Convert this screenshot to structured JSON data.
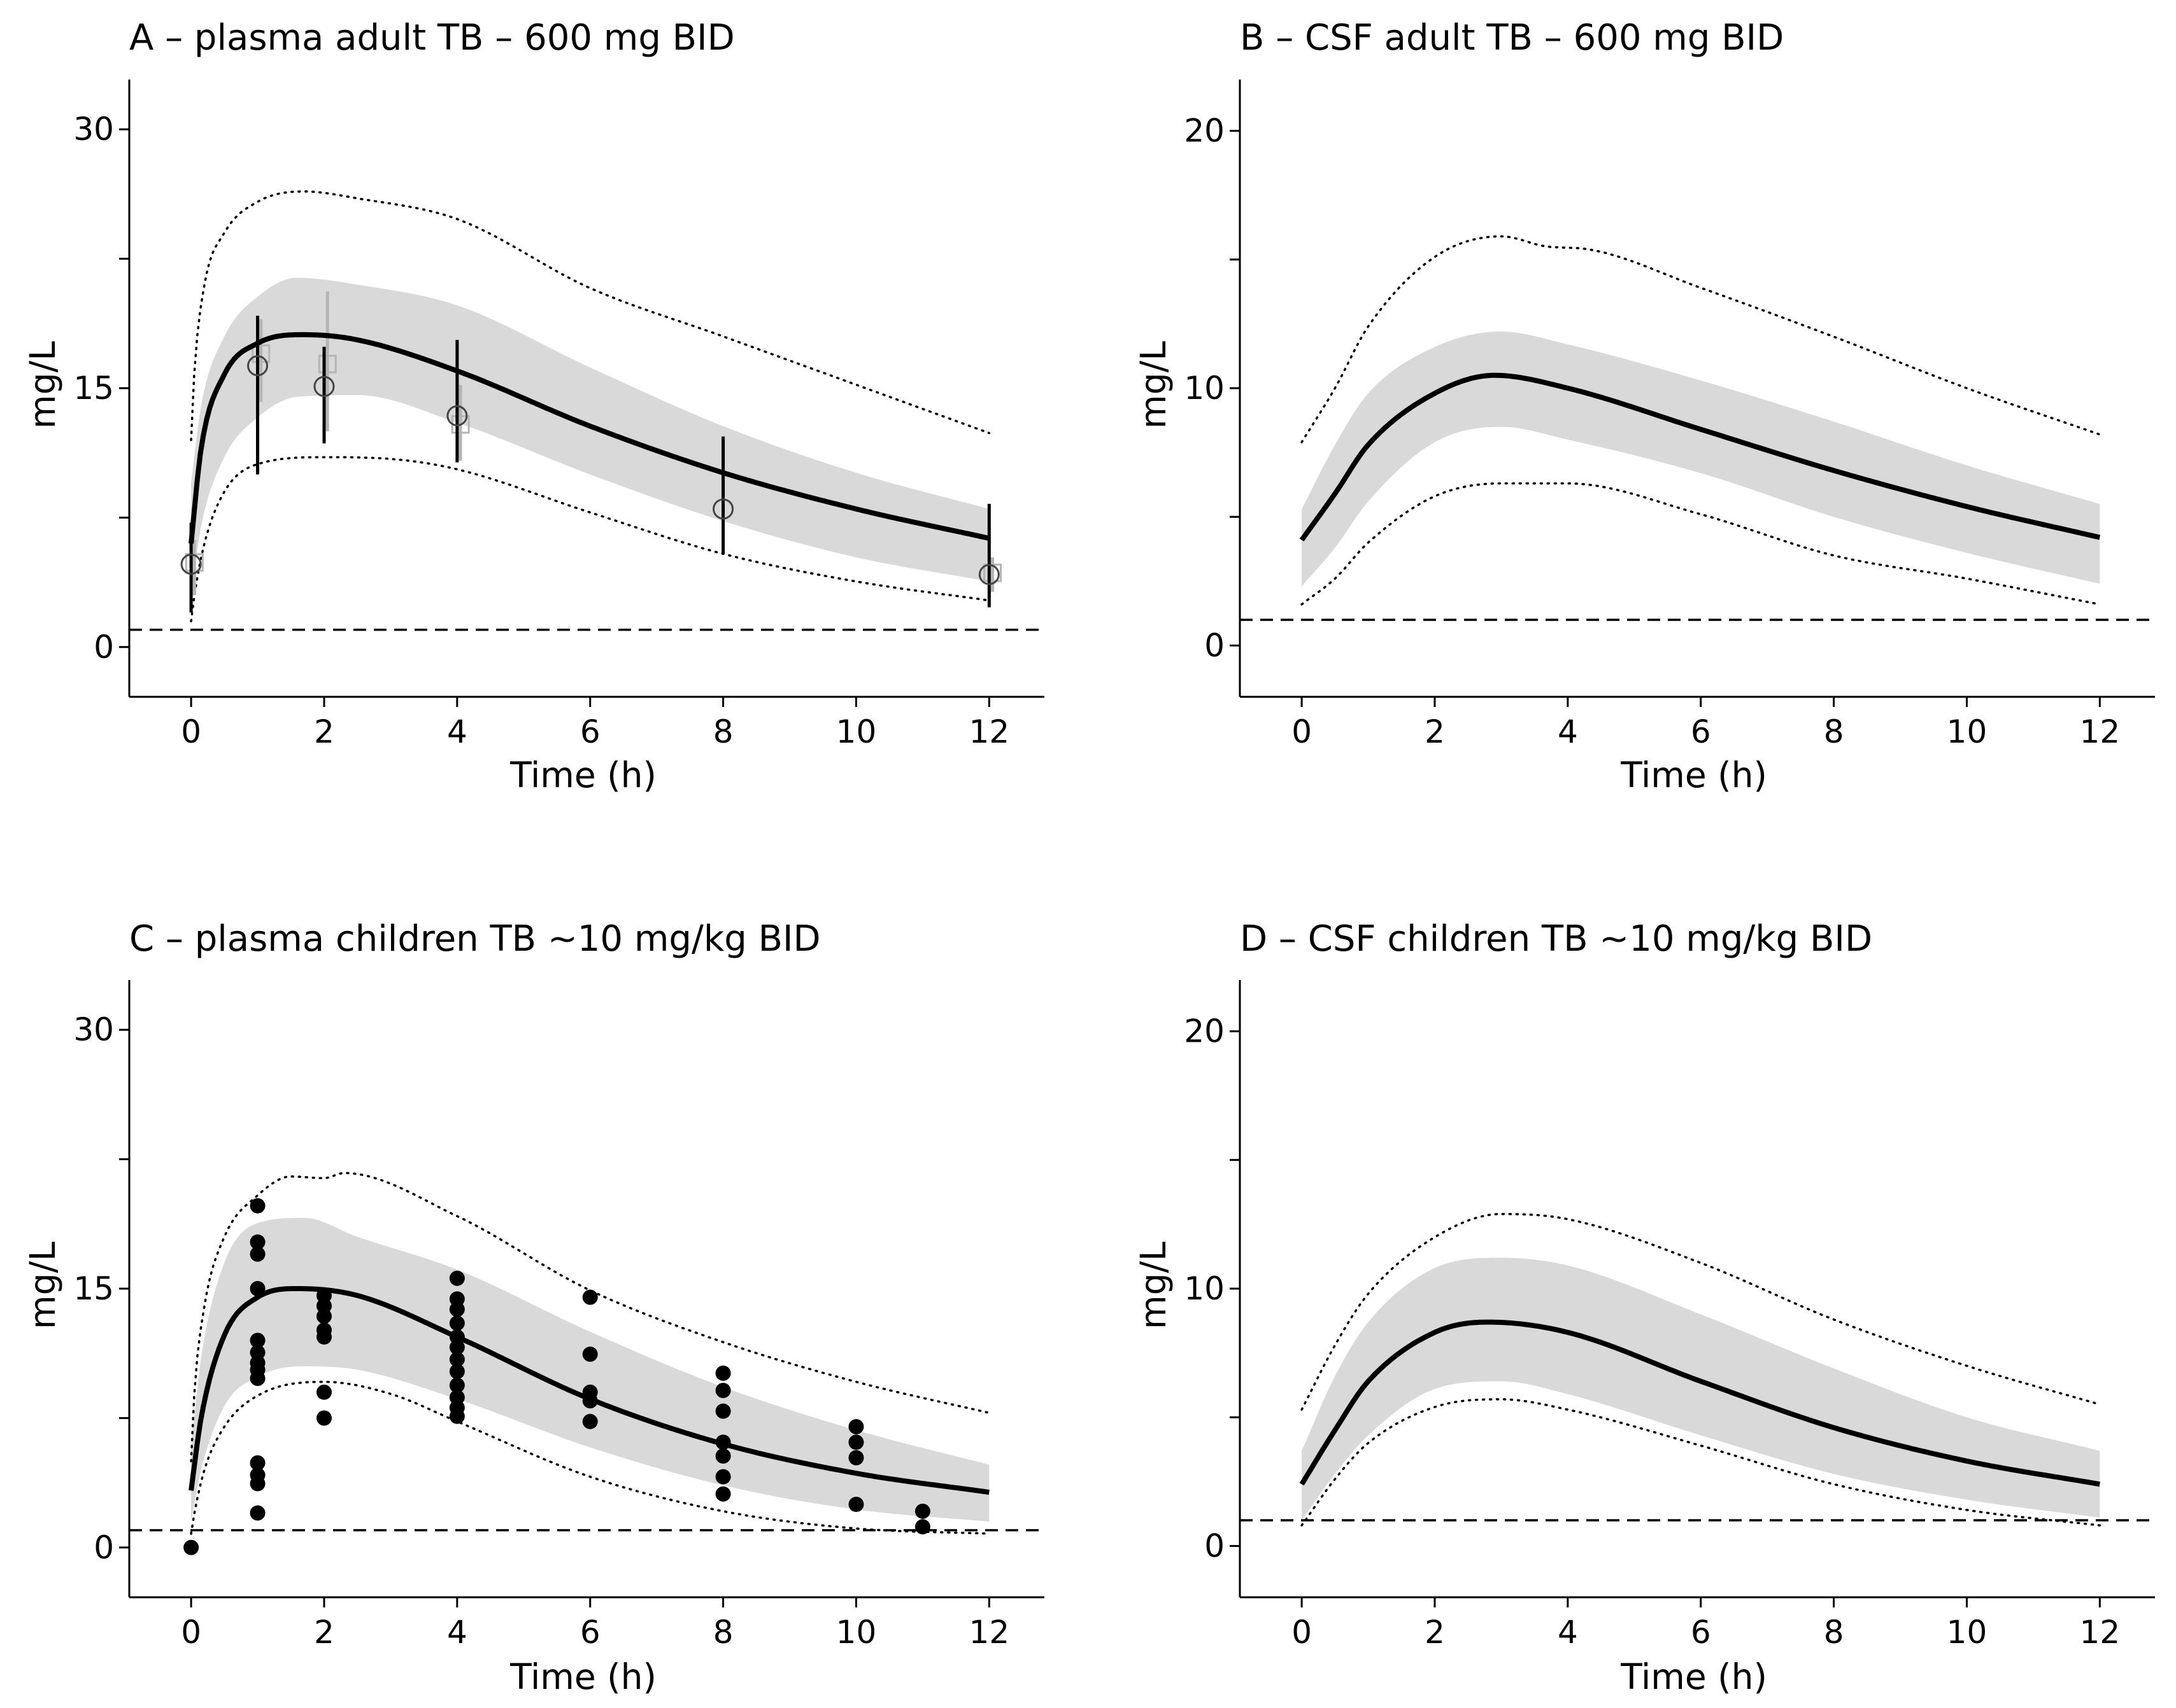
{
  "chart_data": [
    {
      "panel": "A",
      "type": "line",
      "title": "A – plasma adult TB – 600 mg BID",
      "xlabel": "Time (h)",
      "ylabel": "mg/L",
      "xlim": [
        -0.7,
        12.6
      ],
      "ylim": [
        -2,
        32
      ],
      "xticks": [
        0,
        2,
        4,
        6,
        8,
        10,
        12
      ],
      "yticks": [
        0,
        15,
        30
      ],
      "yminor_ticks": [
        7.5,
        22.5
      ],
      "reference_line": 1,
      "median": {
        "x": [
          0,
          0.15,
          0.5,
          1,
          1.7,
          2.5,
          4,
          6,
          8,
          10,
          12
        ],
        "y": [
          6.0,
          11.5,
          15.8,
          17.6,
          18.1,
          17.8,
          16.0,
          12.8,
          10.1,
          8.0,
          6.3
        ]
      },
      "band": {
        "x": [
          0,
          0.15,
          0.5,
          1,
          1.6,
          2.5,
          4,
          6,
          8,
          10,
          12
        ],
        "lower": [
          3.0,
          7.0,
          11.0,
          13.3,
          14.5,
          14.6,
          13.0,
          10.0,
          7.3,
          5.2,
          3.8
        ],
        "upper": [
          9.5,
          14.0,
          18.0,
          20.3,
          21.4,
          21.0,
          19.8,
          16.2,
          12.8,
          10.1,
          8.0
        ]
      },
      "pi_upper": {
        "x": [
          0,
          0.05,
          0.2,
          0.5,
          1,
          1.7,
          2.5,
          4,
          6,
          8,
          10,
          12
        ],
        "y": [
          12,
          16,
          21,
          24,
          25.8,
          26.4,
          26.0,
          24.8,
          20.8,
          18.0,
          15.2,
          12.4
        ]
      },
      "pi_lower": {
        "x": [
          0,
          0.05,
          0.2,
          0.5,
          1,
          2,
          3,
          4,
          6,
          8,
          10,
          12
        ],
        "y": [
          1.5,
          3.0,
          6.0,
          9.0,
          10.6,
          11.0,
          10.9,
          10.3,
          7.8,
          5.4,
          3.8,
          2.7
        ]
      },
      "observed": {
        "x": [
          0,
          1,
          2,
          4,
          8,
          12
        ],
        "y": [
          4.8,
          16.3,
          15.1,
          13.4,
          8.0,
          4.2
        ],
        "err_low": [
          2.0,
          10.0,
          11.8,
          10.7,
          5.4,
          2.3
        ],
        "err_high": [
          7.2,
          19.2,
          17.4,
          17.8,
          12.2,
          8.3
        ]
      },
      "observed_secondary": {
        "x": [
          0.05,
          1.05,
          2.05,
          4.05,
          12.05
        ],
        "y": [
          4.9,
          17.0,
          16.4,
          12.9,
          4.3
        ],
        "err_low": [
          3.0,
          14.2,
          12.5,
          10.8,
          3.2
        ],
        "err_high": [
          6.2,
          19.0,
          20.6,
          15.2,
          5.2
        ]
      }
    },
    {
      "panel": "B",
      "type": "line",
      "title": "B – CSF adult TB – 600 mg BID",
      "xlabel": "Time (h)",
      "ylabel": "mg/L",
      "xlim": [
        -0.7,
        12.6
      ],
      "ylim": [
        -1.4,
        21.4
      ],
      "xticks": [
        0,
        2,
        4,
        6,
        8,
        10,
        12
      ],
      "yticks": [
        0,
        10,
        20
      ],
      "yminor_ticks": [
        5,
        15
      ],
      "reference_line": 1,
      "median": {
        "x": [
          0,
          0.5,
          1,
          2,
          2.9,
          4,
          6,
          8,
          10,
          12
        ],
        "y": [
          4.1,
          5.9,
          7.8,
          9.8,
          10.5,
          10.0,
          8.4,
          6.8,
          5.4,
          4.2
        ]
      },
      "band": {
        "x": [
          0,
          0.5,
          1,
          2,
          3,
          4,
          6,
          8,
          10,
          12
        ],
        "lower": [
          2.3,
          3.8,
          5.6,
          7.9,
          8.5,
          8.0,
          6.7,
          5.0,
          3.6,
          2.4
        ],
        "upper": [
          5.3,
          7.8,
          9.8,
          11.6,
          12.2,
          11.7,
          10.3,
          8.7,
          7.0,
          5.5
        ]
      },
      "pi_upper": {
        "x": [
          0,
          0.5,
          1,
          2,
          3,
          3.7,
          4.3,
          6,
          8,
          10,
          12
        ],
        "y": [
          7.9,
          10.0,
          12.4,
          15.1,
          15.9,
          15.5,
          15.4,
          13.9,
          12.0,
          10.0,
          8.2
        ]
      },
      "pi_lower": {
        "x": [
          0,
          0.5,
          1,
          2,
          3,
          4,
          6,
          8,
          10,
          12
        ],
        "y": [
          1.6,
          2.6,
          4.0,
          5.8,
          6.3,
          6.3,
          5.1,
          3.5,
          2.6,
          1.6
        ]
      }
    },
    {
      "panel": "C",
      "type": "scatter",
      "title": "C – plasma children TB ~10 mg/kg BID",
      "xlabel": "Time (h)",
      "ylabel": "mg/L",
      "xlim": [
        -0.7,
        12.6
      ],
      "ylim": [
        -2,
        32
      ],
      "xticks": [
        0,
        2,
        4,
        6,
        8,
        10,
        12
      ],
      "yticks": [
        0,
        15,
        30
      ],
      "yminor_ticks": [
        7.5,
        22.5
      ],
      "reference_line": 1,
      "median": {
        "x": [
          0,
          0.15,
          0.5,
          1,
          1.6,
          2.5,
          4,
          6,
          8,
          10,
          12
        ],
        "y": [
          3.3,
          7.5,
          12.3,
          14.5,
          15.0,
          14.6,
          12.2,
          8.6,
          6.0,
          4.3,
          3.2
        ]
      },
      "band": {
        "x": [
          0,
          0.15,
          0.5,
          1,
          1.7,
          2.5,
          4,
          6,
          8,
          10,
          12
        ],
        "lower": [
          1.5,
          4.5,
          8.2,
          9.9,
          10.5,
          10.3,
          8.6,
          5.8,
          3.6,
          2.2,
          1.5
        ],
        "upper": [
          5.8,
          11.0,
          16.5,
          18.8,
          19.1,
          18.0,
          16.1,
          12.5,
          9.3,
          6.8,
          4.8
        ]
      },
      "pi_upper": {
        "x": [
          0,
          0.05,
          0.2,
          0.5,
          1,
          1.5,
          2,
          2.3,
          4,
          6,
          8,
          10,
          12
        ],
        "y": [
          5,
          9,
          14,
          18,
          20.4,
          21.5,
          21.4,
          21.7,
          19.2,
          14.9,
          11.9,
          9.6,
          7.8
        ]
      },
      "pi_lower": {
        "x": [
          0,
          0.05,
          0.2,
          0.5,
          1,
          2,
          3,
          4,
          6,
          8,
          10,
          12
        ],
        "y": [
          0.8,
          2.0,
          4.5,
          7.0,
          8.8,
          9.6,
          8.9,
          7.3,
          4.1,
          2.1,
          1.1,
          0.8
        ]
      },
      "observed": {
        "x": [
          0,
          1,
          1,
          1,
          1,
          1,
          1,
          1,
          1,
          1,
          1,
          1,
          1,
          1,
          2,
          2,
          2,
          2,
          2,
          2,
          2,
          4,
          4,
          4,
          4,
          4,
          4,
          4,
          4,
          4,
          4,
          4,
          4,
          6,
          6,
          6,
          6,
          6,
          8,
          8,
          8,
          8,
          8,
          8,
          8,
          10,
          10,
          10,
          10,
          11,
          11
        ],
        "y": [
          0,
          19.8,
          17.7,
          17.0,
          15.0,
          12.0,
          11.3,
          10.7,
          10.3,
          9.8,
          4.9,
          4.2,
          3.7,
          2.0,
          14.6,
          14.0,
          13.4,
          12.6,
          12.2,
          9.0,
          7.5,
          15.6,
          14.4,
          13.8,
          13.0,
          12.2,
          11.6,
          10.9,
          10.2,
          9.4,
          8.7,
          8.1,
          7.6,
          14.5,
          11.2,
          9.0,
          8.5,
          7.3,
          10.1,
          9.1,
          7.9,
          6.1,
          5.3,
          4.1,
          3.1,
          7.0,
          6.1,
          5.2,
          2.5,
          2.1,
          1.2
        ]
      }
    },
    {
      "panel": "D",
      "type": "line",
      "title": "D – CSF children TB ~10 mg/kg BID",
      "xlabel": "Time (h)",
      "ylabel": "mg/L",
      "xlim": [
        -0.7,
        12.6
      ],
      "ylim": [
        -1.4,
        21.4
      ],
      "xticks": [
        0,
        2,
        4,
        6,
        8,
        10,
        12
      ],
      "yticks": [
        0,
        10,
        20
      ],
      "yminor_ticks": [
        5,
        15
      ],
      "reference_line": 1,
      "median": {
        "x": [
          0,
          0.5,
          1,
          2,
          2.8,
          4,
          6,
          8,
          10,
          12
        ],
        "y": [
          2.4,
          4.5,
          6.4,
          8.3,
          8.7,
          8.3,
          6.4,
          4.6,
          3.3,
          2.4
        ]
      },
      "band": {
        "x": [
          0,
          0.5,
          1,
          2,
          3,
          4,
          6,
          8,
          10,
          12
        ],
        "lower": [
          1.0,
          2.8,
          4.3,
          6.1,
          6.4,
          5.9,
          4.3,
          2.8,
          1.8,
          1.1
        ],
        "upper": [
          3.7,
          6.6,
          8.7,
          10.8,
          11.2,
          10.9,
          9.0,
          6.9,
          5.0,
          3.7
        ]
      },
      "pi_upper": {
        "x": [
          0,
          0.5,
          1,
          2,
          3,
          4,
          6,
          8,
          10,
          12
        ],
        "y": [
          5.3,
          7.8,
          9.8,
          12.0,
          12.9,
          12.7,
          11.0,
          8.8,
          7.0,
          5.5
        ]
      },
      "pi_lower": {
        "x": [
          0,
          0.5,
          1,
          2,
          3,
          4,
          6,
          8,
          10,
          12
        ],
        "y": [
          0.8,
          2.6,
          4.0,
          5.4,
          5.7,
          5.3,
          3.9,
          2.4,
          1.4,
          0.8
        ]
      }
    }
  ]
}
